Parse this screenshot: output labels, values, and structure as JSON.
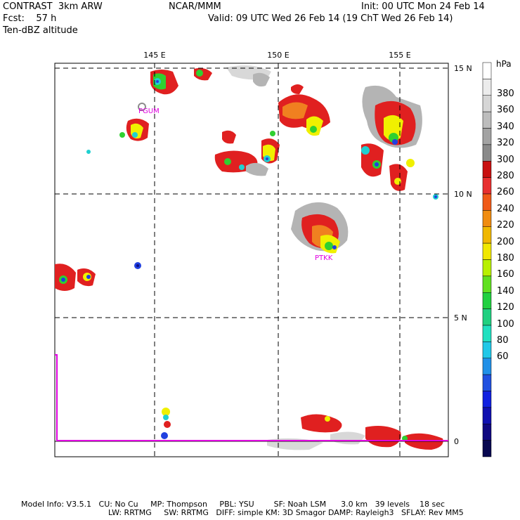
{
  "header": {
    "model": "CONTRAST  3km ARW",
    "org": "NCAR/MMM",
    "init": "Init: 00 UTC Mon 24 Feb 14",
    "fcst": "Fcst:    57 h",
    "valid": "Valid: 09 UTC Wed 26 Feb 14 (19 ChT Wed 26 Feb 14)",
    "field": "Ten-dBZ altitude"
  },
  "map": {
    "lon_labels": [
      "145 E",
      "150 E",
      "155 E"
    ],
    "lat_labels": [
      "15 N",
      "10 N",
      "5 N",
      "0"
    ],
    "stations": [
      "PGUM",
      "PTKK"
    ],
    "colors": {
      "magenta": "#e000e0",
      "gray_light": "#d8d8d8",
      "gray_mid": "#b4b4b4",
      "gray_dark": "#8c8c8c",
      "red": "#e02020",
      "orange": "#f08020",
      "yellow": "#f0f000",
      "green": "#30d030",
      "cyan": "#20d0d0",
      "blue": "#2040e0",
      "navy": "#101080"
    }
  },
  "colorbar": {
    "unit": "hPa",
    "labels": [
      "380",
      "360",
      "340",
      "320",
      "300",
      "280",
      "260",
      "240",
      "220",
      "200",
      "180",
      "160",
      "140",
      "120",
      "100",
      "80",
      "60"
    ],
    "colors": [
      "#ffffff",
      "#ececec",
      "#d6d6d6",
      "#bdbdbd",
      "#a3a3a3",
      "#8a8a8a",
      "#c81010",
      "#e83030",
      "#f05a18",
      "#f08c10",
      "#f0b800",
      "#f0e800",
      "#b8f000",
      "#60e020",
      "#20d040",
      "#20d080",
      "#20e0c0",
      "#20c8e8",
      "#2090e8",
      "#2050e0",
      "#1020e0",
      "#1010b0",
      "#100880",
      "#080850"
    ]
  },
  "footer": {
    "line1": "Model Info: V3.5.1   CU: No Cu     MP: Thompson     PBL: YSU        SF: Noah LSM      3.0 km   39 levels    18 sec",
    "line2": "LW: RRTMG     SW: RRTMG   DIFF: simple KM: 3D Smagor DAMP: Rayleigh3   SFLAY: Rev MM5"
  }
}
